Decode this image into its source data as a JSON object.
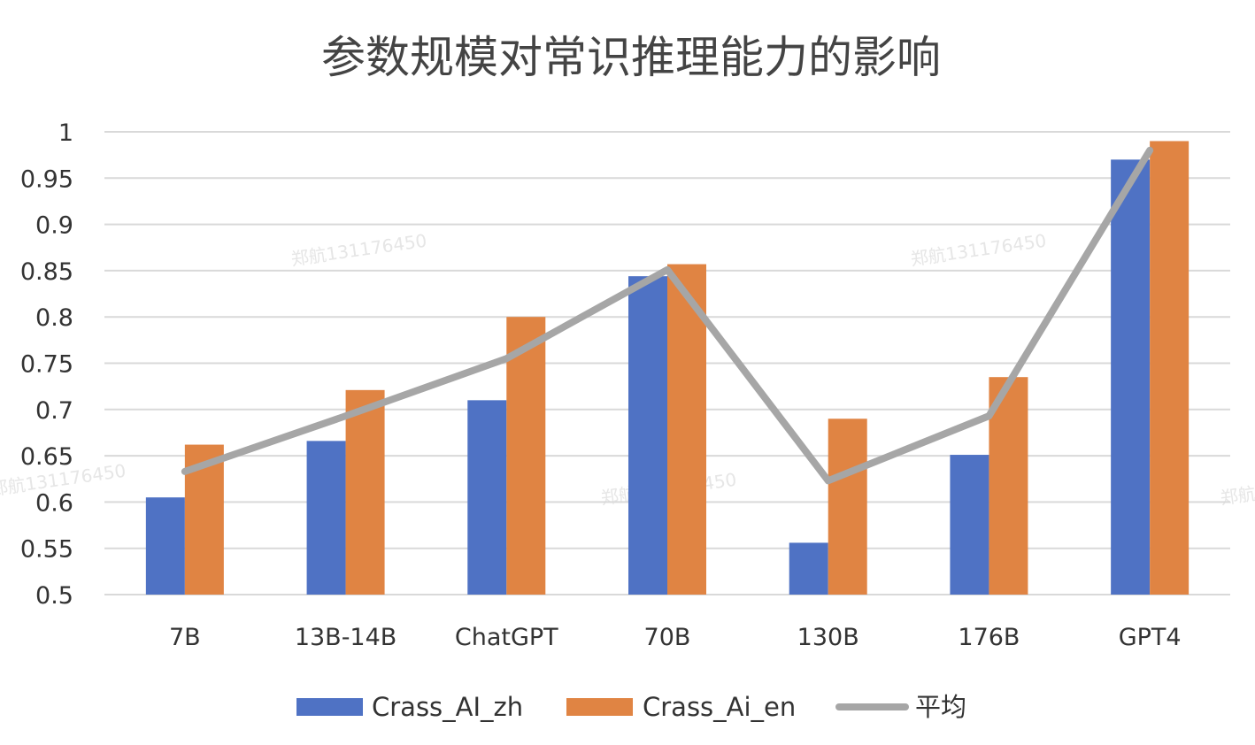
{
  "chart_data": {
    "type": "bar",
    "title": "参数规模对常识推理能力的影响",
    "categories": [
      "7B",
      "13B-14B",
      "ChatGPT",
      "70B",
      "130B",
      "176B",
      "GPT4"
    ],
    "series": [
      {
        "name": "Crass_AI_zh",
        "kind": "bar",
        "color": "#4f72c4",
        "values": [
          0.605,
          0.666,
          0.71,
          0.844,
          0.556,
          0.651,
          0.97
        ]
      },
      {
        "name": "Crass_Ai_en",
        "kind": "bar",
        "color": "#e08443",
        "values": [
          0.662,
          0.721,
          0.8,
          0.857,
          0.69,
          0.735,
          0.99
        ]
      },
      {
        "name": "平均",
        "kind": "line",
        "color": "#a6a6a6",
        "values": [
          0.633,
          0.693,
          0.755,
          0.851,
          0.623,
          0.693,
          0.98
        ]
      }
    ],
    "ylim": [
      0.5,
      1
    ],
    "yticks": [
      "0.5",
      "0.55",
      "0.6",
      "0.65",
      "0.7",
      "0.75",
      "0.8",
      "0.85",
      "0.9",
      "0.95",
      "1"
    ],
    "grid": true,
    "legend_position": "bottom",
    "watermark": "郑航131176450",
    "gridline_color": "#d9d9d9"
  }
}
